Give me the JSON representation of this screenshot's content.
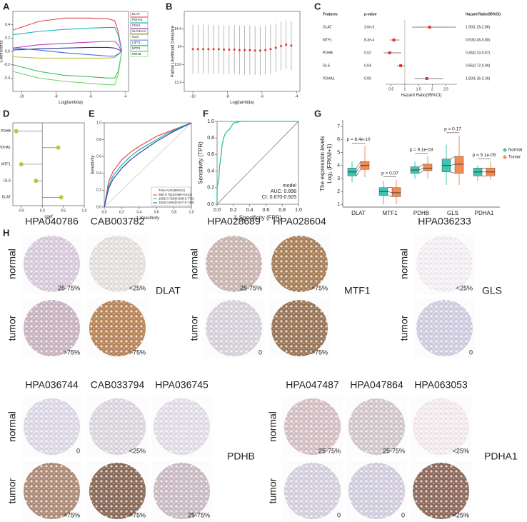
{
  "panels": {
    "A": {
      "label": "A",
      "type": "line",
      "xlabel": "Log(lambda)",
      "ylabel": "Coefficients",
      "xlim": [
        -10.5,
        -3.8
      ],
      "ylim": [
        -0.6,
        0.6
      ],
      "xticks": [
        -10,
        -8,
        -6,
        -4
      ],
      "yticks": [
        -0.4,
        -0.2,
        {
          "value": 0,
          "label": "0.0"
        },
        0.2,
        0.4
      ],
      "x": [
        -10.5,
        -9,
        -7.5,
        -6,
        -5,
        -4.6,
        -4.4,
        -4.2
      ],
      "series": [
        {
          "name": "DLAT",
          "color": "#e8454f",
          "values": [
            0.32,
            0.45,
            0.5,
            0.5,
            0.49,
            0.46,
            0.3,
            0.02
          ]
        },
        {
          "name": "PDHA1",
          "color": "#1fb5b0",
          "values": [
            0.25,
            0.3,
            0.33,
            0.35,
            0.36,
            0.36,
            0.25,
            0.01
          ]
        },
        {
          "name": "FDX1",
          "color": "#c43bc4",
          "values": [
            0.05,
            0.1,
            0.12,
            0.14,
            0.15,
            0.15,
            0.1,
            0
          ]
        },
        {
          "name": "SLC31A1",
          "color": "#2b3a8c",
          "values": [
            0.02,
            0.04,
            0.05,
            0.06,
            0.06,
            0.05,
            0.03,
            0
          ]
        },
        {
          "name": "GLS",
          "color": "#b8c83a",
          "values": [
            -0.08,
            -0.1,
            -0.1,
            -0.1,
            -0.1,
            -0.09,
            -0.05,
            0
          ]
        },
        {
          "name": "LIPT1",
          "color": "#3a6fd8",
          "values": [
            0.05,
            0.02,
            -0.02,
            -0.05,
            -0.07,
            -0.07,
            -0.04,
            0
          ]
        },
        {
          "name": "MTF1",
          "color": "#3dbb5a",
          "values": [
            -0.2,
            -0.3,
            -0.36,
            -0.38,
            -0.4,
            -0.4,
            -0.3,
            -0.02
          ]
        },
        {
          "name": "PDHB",
          "color": "#6fd46f",
          "values": [
            -0.3,
            -0.4,
            -0.45,
            -0.48,
            -0.5,
            -0.5,
            -0.35,
            -0.02
          ]
        }
      ]
    },
    "B": {
      "label": "B",
      "type": "errorbar",
      "xlabel": "Log(lambda)",
      "ylabel": "Partial Likelihood Deviance",
      "color": "#e83030",
      "xlim": [
        -10.5,
        -3.8
      ],
      "ylim": [
        13.0,
        14.8
      ],
      "xticks": [
        -10,
        -8,
        -6,
        -4
      ],
      "yticks": [
        13.2,
        13.6,
        14.0,
        14.4
      ],
      "x": [
        -10,
        -9.7,
        -9.4,
        -9.1,
        -8.8,
        -8.5,
        -8.2,
        -7.9,
        -7.6,
        -7.3,
        -7.0,
        -6.7,
        -6.4,
        -6.1,
        -5.8,
        -5.5,
        -5.2,
        -4.9,
        -4.6,
        -4.3
      ],
      "values": [
        13.95,
        13.95,
        13.95,
        13.95,
        13.95,
        13.95,
        13.94,
        13.94,
        13.94,
        13.93,
        13.93,
        13.93,
        13.92,
        13.92,
        13.93,
        13.95,
        13.98,
        14.02,
        14.05,
        14.03
      ],
      "errors": [
        0.55,
        0.55,
        0.55,
        0.55,
        0.55,
        0.55,
        0.55,
        0.55,
        0.55,
        0.55,
        0.55,
        0.55,
        0.55,
        0.55,
        0.55,
        0.55,
        0.55,
        0.55,
        0.55,
        0.55
      ]
    },
    "C": {
      "label": "C",
      "type": "forest",
      "headers": [
        "Features",
        "p-value",
        "Hazard Ratio(95%CI)"
      ],
      "xlabel": "Hazard Ratio(95%CI)",
      "xlim": [
        0.3,
        2.9
      ],
      "xticks": [
        0.5,
        1,
        1.5,
        2,
        2.5
      ],
      "reference_line": 1,
      "color": "#e83030",
      "rows": [
        {
          "feature": "DLAT",
          "p": "3.6e-3",
          "hr": 1.9,
          "lo": 1.26,
          "hi": 2.86,
          "text": "1.90(1.26-2.86)"
        },
        {
          "feature": "MTF1",
          "p": "8.3e-4",
          "hr": 0.6,
          "lo": 0.45,
          "hi": 0.8,
          "text": "0.60(0.45-0.80)"
        },
        {
          "feature": "PDHB",
          "p": "0.02",
          "hr": 0.45,
          "lo": 0.23,
          "hi": 0.87,
          "text": "0.45(0.23-0.87)"
        },
        {
          "feature": "GLS",
          "p": "0.04",
          "hr": 0.85,
          "lo": 0.72,
          "hi": 0.99,
          "text": "0.85(0.72-0.99)"
        },
        {
          "feature": "PDHA1",
          "p": "0.00",
          "hr": 1.8,
          "lo": 1.36,
          "hi": 2.39,
          "text": "1.80(1.36-2.39)"
        }
      ]
    },
    "D": {
      "label": "D",
      "type": "dot",
      "xlabel": "coef",
      "color": "#b5c83a",
      "categories": [
        "PDHB",
        "PDHA1",
        "MTF1",
        "GLS",
        "DLAT"
      ],
      "values": [
        -0.62,
        0.38,
        -0.5,
        -0.15,
        0.45
      ],
      "xlim": [
        -0.7,
        1.0
      ],
      "xticks": [
        -0.5,
        {
          "value": 0,
          "label": "0.0"
        },
        0.5,
        {
          "value": 1,
          "label": "1.0"
        }
      ]
    },
    "E": {
      "label": "E",
      "type": "roc",
      "xlabel": "1-Specificity",
      "ylabel": "Sensitivity",
      "legend_title": "Time AUC(95%CI)",
      "xlim": [
        0,
        1
      ],
      "ylim": [
        0,
        1
      ],
      "xticks": [
        {
          "value": 0,
          "label": "0.0"
        },
        0.2,
        0.4,
        0.6,
        0.8,
        {
          "value": 1,
          "label": "1.0"
        }
      ],
      "yticks": [
        {
          "value": 0,
          "label": "0.0"
        },
        0.2,
        0.4,
        0.6,
        0.8,
        {
          "value": 1,
          "label": "1.0"
        }
      ],
      "x": [
        0,
        0.05,
        0.1,
        0.2,
        0.3,
        0.4,
        0.5,
        0.6,
        0.7,
        0.8,
        0.9,
        1
      ],
      "series": [
        {
          "name": "365 0.751(0.690-0.812)",
          "color": "#e8454f",
          "values": [
            0,
            0.3,
            0.42,
            0.56,
            0.65,
            0.72,
            0.78,
            0.84,
            0.88,
            0.92,
            0.96,
            1
          ]
        },
        {
          "name": "1095 0.720(0.668-0.772)",
          "color": "#1fb5a0",
          "values": [
            0,
            0.25,
            0.37,
            0.5,
            0.6,
            0.68,
            0.74,
            0.8,
            0.86,
            0.91,
            0.96,
            1
          ]
        },
        {
          "name": "1825 0.693(0.637-0.749)",
          "color": "#2b4aa8",
          "values": [
            0,
            0.22,
            0.33,
            0.46,
            0.56,
            0.64,
            0.71,
            0.78,
            0.84,
            0.9,
            0.95,
            1
          ]
        }
      ]
    },
    "F": {
      "label": "F",
      "type": "roc",
      "xlabel": "1-Specificity (FPR)",
      "ylabel": "Sensitivity (TPR)",
      "color": "#2ec48c",
      "legend": [
        "model",
        "AUC: 0.898",
        "CI: 0.870-0.925"
      ],
      "xlim": [
        0,
        1
      ],
      "ylim": [
        0,
        1
      ],
      "xticks": [
        {
          "value": 0,
          "label": "0.0"
        },
        0.2,
        0.4,
        0.6,
        0.8,
        {
          "value": 1,
          "label": "1.0"
        }
      ],
      "yticks": [
        {
          "value": 0,
          "label": "0.0"
        },
        0.2,
        0.4,
        0.6,
        0.8,
        {
          "value": 1,
          "label": "1.0"
        }
      ],
      "x": [
        0,
        0,
        0.02,
        0.03,
        0.05,
        0.06,
        0.08,
        0.1,
        0.12,
        0.15,
        0.2,
        0.3,
        0.5,
        1
      ],
      "values": [
        0,
        0.2,
        0.3,
        0.45,
        0.6,
        0.7,
        0.8,
        0.85,
        0.88,
        0.9,
        0.98,
        1,
        1,
        1
      ]
    },
    "G": {
      "label": "G",
      "type": "box",
      "ylabel": [
        "The expression levels",
        "Log₂ (FPKM+1)"
      ],
      "categories": [
        "DLAT",
        "MTF1",
        "PDHB",
        "GLS",
        "PDHA1"
      ],
      "pvalues": [
        "p = 8.4e-10",
        "p = 0.07",
        "p = 9.1e-03",
        "p = 0.17",
        "p = 5.1e-05"
      ],
      "ylim": [
        0.8,
        7.5
      ],
      "yticks": [
        1,
        2,
        3,
        4,
        5,
        6,
        7
      ],
      "series": [
        {
          "name": "Normal",
          "color": "#3ec4b0",
          "q1": [
            3.2,
            1.7,
            3.4,
            3.5,
            3.2
          ],
          "median": [
            3.5,
            2.0,
            3.65,
            4.0,
            3.5
          ],
          "q3": [
            3.8,
            2.3,
            3.9,
            4.5,
            3.8
          ],
          "low": [
            2.7,
            1.0,
            3.0,
            2.5,
            2.8
          ],
          "high": [
            4.3,
            2.8,
            4.3,
            5.6,
            4.0
          ]
        },
        {
          "name": "Tumor",
          "color": "#f28b52",
          "q1": [
            3.7,
            1.6,
            3.6,
            3.4,
            3.2
          ],
          "median": [
            4.0,
            1.9,
            3.8,
            4.1,
            3.5
          ],
          "q3": [
            4.3,
            2.3,
            4.1,
            4.7,
            3.8
          ],
          "low": [
            3.1,
            1.0,
            3.0,
            2.5,
            2.9
          ],
          "high": [
            5.5,
            2.9,
            4.7,
            6.3,
            4.3
          ]
        }
      ]
    },
    "H": {
      "label": "H",
      "row_labels": [
        "normal",
        "tumor"
      ],
      "groups": [
        {
          "gene": "DLAT",
          "antibodies": [
            "HPA040786",
            "CAB003782"
          ],
          "normal": [
            "25-75%",
            "<25%"
          ],
          "tumor": [
            ">75%",
            ">75%"
          ],
          "normal_colors": [
            "#d8cbdc",
            "#e4e0de"
          ],
          "tumor_colors": [
            "#c9b4c0",
            "#b8865a"
          ]
        },
        {
          "gene": "MTF1",
          "antibodies": [
            "HPA028689",
            "HPA028604"
          ],
          "normal": [
            "25-75%",
            ">75%"
          ],
          "tumor": [
            "0",
            ">75%"
          ],
          "normal_colors": [
            "#c9b6b0",
            "#a8805a"
          ],
          "tumor_colors": [
            "#d6d2da",
            "#9a7658"
          ]
        },
        {
          "gene": "GLS",
          "antibodies": [
            "HPA036233"
          ],
          "normal": [
            "<25%"
          ],
          "tumor": [
            "0"
          ],
          "normal_colors": [
            "#f2eef2"
          ],
          "tumor_colors": [
            "#cfcde0"
          ]
        },
        {
          "gene": "PDHB",
          "antibodies": [
            "HPA036744",
            "CAB033794",
            "HPA036745"
          ],
          "normal": [
            "0",
            "<25%",
            null
          ],
          "tumor": [
            ">75%",
            ">75%",
            "25-75%"
          ],
          "normal_colors": [
            "#dcd8e6",
            "#dcd6de",
            "#e2dee8"
          ],
          "tumor_colors": [
            "#ae8c78",
            "#8a6a58",
            "#cbbcc4"
          ]
        },
        {
          "gene": "PDHA1",
          "antibodies": [
            "HPA047487",
            "HPA047864",
            "HPA063053"
          ],
          "normal": [
            "25-75%",
            "25-75%",
            "<25%"
          ],
          "tumor": [
            "0",
            "0",
            "<25%"
          ],
          "normal_colors": [
            "#d4c0c4",
            "#d2c8cc",
            "#f2eaec"
          ],
          "tumor_colors": [
            "#d4d0de",
            "#d2cede",
            "#8e6a5c"
          ]
        }
      ]
    }
  }
}
